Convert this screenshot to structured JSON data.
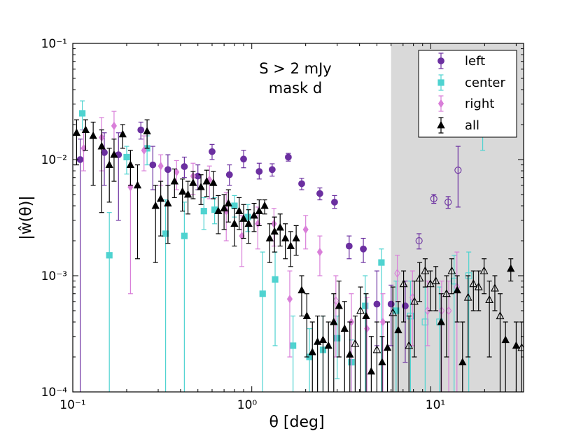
{
  "chart_data": {
    "type": "scatter",
    "xscale": "log",
    "yscale": "log",
    "xlim": [
      0.1,
      33
    ],
    "ylim": [
      0.0001,
      0.1
    ],
    "xlabel": "θ [deg]",
    "ylabel": "|ŵ(θ)|",
    "x_tick_labels": [
      "10⁻¹",
      "10⁰",
      "10¹"
    ],
    "y_tick_labels": [
      "10⁻⁴",
      "10⁻³",
      "10⁻²",
      "10⁻¹"
    ],
    "annotation": [
      "S > 2 mJy",
      "mask d"
    ],
    "shaded_region": [
      6,
      33
    ],
    "colors": {
      "left": "#6b2fa0",
      "center": "#4fd3d0",
      "right": "#d97fd9",
      "all": "#000000",
      "shade": "#d9d9d9"
    },
    "series": [
      {
        "name": "left",
        "marker": "circle",
        "x": [
          0.11,
          0.15,
          0.18,
          0.24,
          0.28,
          0.34,
          0.42,
          0.5,
          0.6,
          0.75,
          0.9,
          1.1,
          1.3,
          1.6,
          1.9,
          2.4,
          2.9,
          3.5,
          4.2,
          5.0,
          6.0,
          7.2,
          8.6,
          10.4,
          12.5,
          14.2
        ],
        "y": [
          0.01,
          0.0115,
          0.011,
          0.018,
          0.009,
          0.0082,
          0.0087,
          0.0072,
          0.0117,
          0.0074,
          0.0101,
          0.0079,
          0.0082,
          0.0105,
          0.0062,
          0.0051,
          0.0043,
          0.0018,
          0.0017,
          0.00057,
          0.00057,
          0.00055,
          0.002,
          0.0046,
          0.0043,
          0.0081
        ],
        "lo": [
          7e-05,
          0.006,
          0.003,
          0.015,
          0.0055,
          0.006,
          0.007,
          0.0055,
          0.01,
          0.006,
          0.0085,
          0.0068,
          0.0072,
          0.0097,
          0.0055,
          0.0045,
          0.0038,
          0.0014,
          0.0013,
          0.00025,
          0.00025,
          0.00018,
          0.0017,
          0.0042,
          0.0038,
          0.0039
        ],
        "hi": [
          0.015,
          0.017,
          0.017,
          0.021,
          0.013,
          0.011,
          0.0105,
          0.009,
          0.0135,
          0.009,
          0.012,
          0.0093,
          0.0092,
          0.0113,
          0.0069,
          0.0057,
          0.0049,
          0.0022,
          0.0021,
          0.0011,
          0.00083,
          0.0009,
          0.0023,
          0.005,
          0.0048,
          0.013
        ],
        "open": [
          false,
          false,
          false,
          false,
          false,
          false,
          false,
          false,
          false,
          false,
          false,
          false,
          false,
          false,
          false,
          false,
          false,
          false,
          false,
          false,
          false,
          false,
          true,
          true,
          true,
          true
        ]
      },
      {
        "name": "center",
        "marker": "square",
        "x": [
          0.113,
          0.16,
          0.2,
          0.26,
          0.33,
          0.42,
          0.54,
          0.62,
          0.8,
          0.95,
          1.15,
          1.35,
          1.7,
          2.1,
          2.5,
          3.0,
          3.6,
          4.3,
          5.3,
          6.4,
          7.7,
          9.3,
          11.2,
          13.5,
          16.3,
          19.5
        ],
        "y": [
          0.025,
          0.0015,
          0.0105,
          0.0125,
          0.0023,
          0.0022,
          0.0036,
          0.0037,
          0.004,
          0.0032,
          0.0007,
          0.00093,
          0.00025,
          0.0002,
          0.00023,
          0.00029,
          0.00018,
          0.00055,
          0.0013,
          0.0005,
          0.00045,
          0.0004,
          0.0004,
          0.0009,
          0.001,
          0.017
        ],
        "lo": [
          0.018,
          0.0001,
          0.0075,
          0.009,
          0.0001,
          0.0001,
          0.0025,
          0.0028,
          0.0032,
          0.0024,
          0.0001,
          0.00025,
          0.0001,
          0.0001,
          0.0001,
          0.00013,
          0.0001,
          0.0001,
          0.0001,
          0.0001,
          0.0001,
          0.0001,
          0.0001,
          0.0001,
          0.0001,
          0.012
        ],
        "hi": [
          0.032,
          0.0035,
          0.013,
          0.016,
          0.0045,
          0.0043,
          0.0047,
          0.0047,
          0.0049,
          0.0041,
          0.0016,
          0.0016,
          0.00045,
          0.00035,
          0.00045,
          0.00045,
          0.00028,
          0.001,
          0.0017,
          0.0009,
          0.0009,
          0.0008,
          0.0008,
          0.0015,
          0.0016,
          0.022
        ],
        "open": [
          false,
          false,
          false,
          false,
          false,
          false,
          false,
          false,
          false,
          false,
          false,
          false,
          false,
          false,
          false,
          false,
          false,
          false,
          false,
          false,
          true,
          true,
          true,
          true,
          true,
          true
        ]
      },
      {
        "name": "right",
        "marker": "diamond",
        "x": [
          0.115,
          0.145,
          0.17,
          0.21,
          0.25,
          0.31,
          0.38,
          0.47,
          0.58,
          0.72,
          0.88,
          1.08,
          1.33,
          1.63,
          2.0,
          2.4,
          2.95,
          3.6,
          4.4,
          5.4,
          6.5,
          7.9,
          9.6,
          11.5,
          12.6,
          14.0
        ],
        "y": [
          0.0125,
          0.0155,
          0.0195,
          0.0058,
          0.012,
          0.0088,
          0.0078,
          0.0072,
          0.0067,
          0.0036,
          0.0022,
          0.0028,
          0.0028,
          0.00063,
          0.0025,
          0.0016,
          0.00061,
          0.0004,
          0.00035,
          0.0004,
          0.00105,
          0.00065,
          0.0005,
          0.0005,
          0.0005,
          0.0008
        ],
        "lo": [
          0.008,
          0.008,
          0.011,
          0.0007,
          0.008,
          0.006,
          0.0055,
          0.005,
          0.0046,
          0.002,
          0.0012,
          0.0017,
          0.0018,
          0.0002,
          0.0017,
          0.001,
          0.0002,
          0.0001,
          0.0001,
          0.0001,
          0.0006,
          0.00025,
          0.00025,
          0.0001,
          0.0001,
          0.0001
        ],
        "hi": [
          0.018,
          0.023,
          0.026,
          0.009,
          0.016,
          0.011,
          0.0098,
          0.0093,
          0.0088,
          0.0052,
          0.0033,
          0.0039,
          0.0038,
          0.0011,
          0.0033,
          0.0022,
          0.001,
          0.0007,
          0.00065,
          0.0007,
          0.0015,
          0.0011,
          0.0009,
          0.0009,
          0.0009,
          0.0016
        ],
        "open": [
          false,
          false,
          false,
          false,
          false,
          false,
          false,
          false,
          false,
          false,
          false,
          false,
          false,
          false,
          false,
          false,
          true,
          false,
          false,
          false,
          true,
          true,
          true,
          true,
          true,
          true
        ]
      },
      {
        "name": "all",
        "marker": "triangle",
        "x": [
          0.105,
          0.118,
          0.13,
          0.145,
          0.16,
          0.17,
          0.19,
          0.21,
          0.23,
          0.26,
          0.29,
          0.31,
          0.34,
          0.37,
          0.41,
          0.44,
          0.47,
          0.52,
          0.56,
          0.61,
          0.65,
          0.7,
          0.74,
          0.8,
          0.85,
          0.9,
          0.96,
          1.03,
          1.1,
          1.18,
          1.26,
          1.34,
          1.44,
          1.54,
          1.65,
          1.77,
          1.9,
          2.03,
          2.18,
          2.33,
          2.5,
          2.68,
          2.87,
          3.07,
          3.3,
          3.53,
          3.78,
          4.05,
          4.35,
          4.65,
          5.0,
          5.35,
          5.73,
          6.14,
          6.58,
          7.05,
          7.55,
          8.1,
          8.67,
          9.3,
          9.95,
          10.67,
          11.43,
          12.25,
          13.1,
          14.05,
          15.05,
          16.15,
          17.3,
          18.5,
          19.85,
          21.25,
          22.8,
          24.4,
          26.15,
          28.0,
          30.0,
          32.2
        ],
        "y": [
          0.017,
          0.018,
          0.016,
          0.013,
          0.009,
          0.011,
          0.0165,
          0.009,
          0.006,
          0.0175,
          0.004,
          0.0046,
          0.0042,
          0.0065,
          0.0053,
          0.005,
          0.0063,
          0.0058,
          0.0065,
          0.0063,
          0.0036,
          0.0038,
          0.0042,
          0.0028,
          0.0036,
          0.0031,
          0.0028,
          0.0033,
          0.0036,
          0.004,
          0.0021,
          0.0024,
          0.0026,
          0.0021,
          0.0018,
          0.0021,
          0.00075,
          0.00045,
          0.00022,
          0.00027,
          0.00028,
          0.00025,
          0.0004,
          0.00055,
          0.00035,
          0.00021,
          0.00026,
          0.0005,
          0.00045,
          0.00015,
          0.00023,
          0.00018,
          0.00024,
          0.00048,
          0.00034,
          0.00085,
          0.00025,
          0.0006,
          0.00095,
          0.0011,
          0.00085,
          0.0009,
          0.0004,
          0.0007,
          0.0011,
          0.00075,
          0.00018,
          0.00065,
          0.00085,
          0.0008,
          0.0011,
          0.00062,
          0.00078,
          0.00045,
          0.00028,
          0.00115,
          0.00025,
          0.00024
        ],
        "lo": [
          0.009,
          0.012,
          0.006,
          0.0035,
          0.0043,
          0.0065,
          0.0125,
          0.006,
          0.0014,
          0.0125,
          0.0013,
          0.0022,
          0.0019,
          0.0047,
          0.0036,
          0.0034,
          0.0046,
          0.0041,
          0.0048,
          0.0046,
          0.0023,
          0.0025,
          0.0029,
          0.0018,
          0.0025,
          0.0021,
          0.0019,
          0.0024,
          0.0027,
          0.0034,
          0.0013,
          0.0016,
          0.0018,
          0.0014,
          0.0012,
          0.0015,
          0.00045,
          0.0002,
          0.0001,
          0.0001,
          0.0001,
          0.0001,
          0.0001,
          0.0002,
          0.0001,
          0.0001,
          0.0001,
          0.0001,
          0.0001,
          0.0001,
          0.0001,
          0.0001,
          0.0001,
          0.0001,
          0.0001,
          0.0004,
          0.0001,
          0.0002,
          0.0006,
          0.0008,
          0.0005,
          0.0005,
          0.0001,
          0.0002,
          0.0007,
          0.0004,
          0.0001,
          0.0002,
          0.0005,
          0.0005,
          0.0007,
          0.0002,
          0.0005,
          0.0001,
          0.0001,
          0.0009,
          0.0001,
          0.0001
        ],
        "hi": [
          0.022,
          0.022,
          0.021,
          0.018,
          0.0125,
          0.015,
          0.02,
          0.012,
          0.009,
          0.022,
          0.006,
          0.0065,
          0.006,
          0.0083,
          0.0068,
          0.0065,
          0.0079,
          0.0074,
          0.0081,
          0.0079,
          0.0049,
          0.005,
          0.0055,
          0.0038,
          0.0047,
          0.0041,
          0.0037,
          0.0042,
          0.0045,
          0.0045,
          0.0028,
          0.0032,
          0.0034,
          0.0028,
          0.0024,
          0.0027,
          0.001,
          0.0007,
          0.0004,
          0.00045,
          0.00045,
          0.0004,
          0.0007,
          0.0009,
          0.0006,
          0.0004,
          0.00045,
          0.0008,
          0.0007,
          0.0003,
          0.0004,
          0.0003,
          0.0004,
          0.0008,
          0.0006,
          0.0011,
          0.00045,
          0.0009,
          0.0013,
          0.0014,
          0.0011,
          0.0012,
          0.0007,
          0.001,
          0.0014,
          0.001,
          0.0004,
          0.001,
          0.0011,
          0.0011,
          0.0014,
          0.0009,
          0.001,
          0.0007,
          0.0004,
          0.0014,
          0.0004,
          0.0004
        ],
        "open": [
          false,
          false,
          false,
          false,
          false,
          false,
          false,
          false,
          false,
          false,
          false,
          false,
          false,
          false,
          false,
          false,
          false,
          false,
          false,
          false,
          false,
          false,
          false,
          false,
          false,
          false,
          false,
          false,
          false,
          false,
          false,
          false,
          false,
          false,
          false,
          false,
          false,
          false,
          false,
          false,
          false,
          false,
          false,
          false,
          false,
          false,
          true,
          true,
          false,
          false,
          true,
          false,
          false,
          true,
          false,
          true,
          true,
          true,
          true,
          true,
          true,
          true,
          false,
          true,
          true,
          false,
          false,
          true,
          true,
          true,
          true,
          true,
          true,
          true,
          false,
          false,
          false,
          true
        ]
      }
    ],
    "legend": {
      "position": "top-right",
      "entries": [
        "left",
        "center",
        "right",
        "all"
      ]
    }
  }
}
